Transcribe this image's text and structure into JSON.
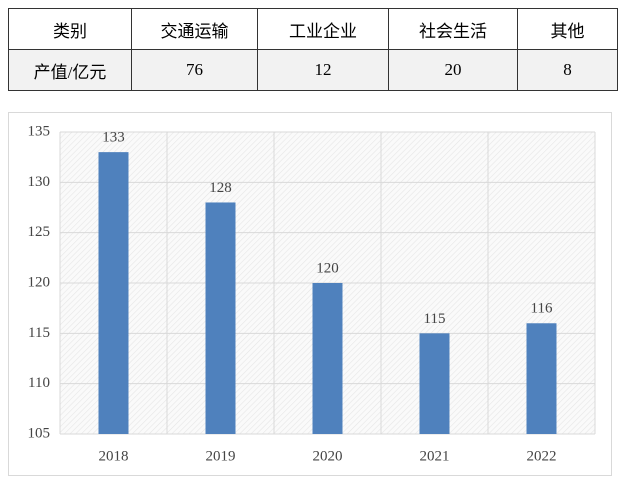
{
  "table": {
    "header": [
      "类别",
      "交通运输",
      "工业企业",
      "社会生活",
      "其他"
    ],
    "rows": [
      [
        "产值/亿元",
        76,
        12,
        20,
        8
      ]
    ]
  },
  "chart_data": {
    "type": "bar",
    "categories": [
      "2018",
      "2019",
      "2020",
      "2021",
      "2022"
    ],
    "values": [
      133,
      128,
      120,
      115,
      116
    ],
    "color": "#4f81bd",
    "ylim": [
      105,
      135
    ],
    "yticks": [
      105,
      110,
      115,
      120,
      125,
      130,
      135
    ],
    "grid": true,
    "data_labels": true
  }
}
